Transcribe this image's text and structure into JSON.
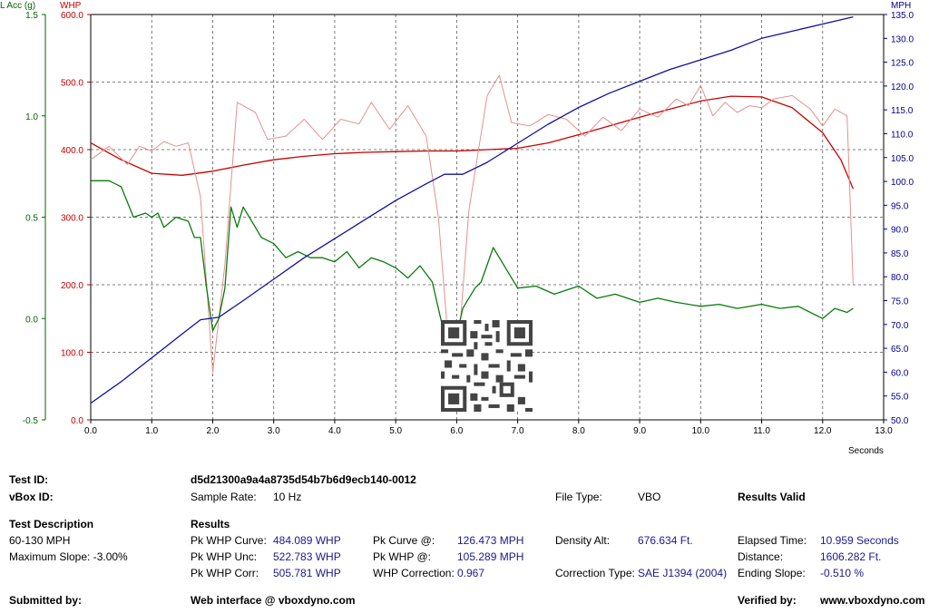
{
  "chart_data": {
    "type": "line",
    "xlabel": "Seconds",
    "xlim": [
      0,
      13
    ],
    "x_ticks": [
      "0.0",
      "1.0",
      "2.0",
      "3.0",
      "4.0",
      "5.0",
      "6.0",
      "7.0",
      "8.0",
      "9.0",
      "10.0",
      "11.0",
      "12.0",
      "13.0"
    ],
    "axes": {
      "whp": {
        "label": "WHP",
        "color": "#c00000",
        "range": [
          0,
          600
        ],
        "ticks": [
          "0.0",
          "100.0",
          "200.0",
          "300.0",
          "400.0",
          "500.0",
          "600.0"
        ]
      },
      "lacc": {
        "label": "L Acc (g)",
        "color": "#006400",
        "range": [
          -0.5,
          1.5
        ],
        "ticks": [
          "-0.5",
          "0.0",
          "0.5",
          "1.0",
          "1.5"
        ]
      },
      "mph": {
        "label": "MPH",
        "color": "#00008b",
        "range": [
          50,
          135
        ],
        "ticks": [
          "50.0",
          "55.0",
          "60.0",
          "65.0",
          "70.0",
          "75.0",
          "80.0",
          "85.0",
          "90.0",
          "95.0",
          "100.0",
          "105.0",
          "110.0",
          "115.0",
          "120.0",
          "125.0",
          "130.0",
          "135.0"
        ]
      }
    },
    "series": [
      {
        "axis": "whp",
        "color": "#cc0000",
        "points": [
          [
            0,
            410
          ],
          [
            0.5,
            385
          ],
          [
            1.0,
            365
          ],
          [
            1.5,
            362
          ],
          [
            2.0,
            368
          ],
          [
            2.5,
            377
          ],
          [
            3.0,
            385
          ],
          [
            3.5,
            390
          ],
          [
            4.0,
            394
          ],
          [
            4.5,
            396
          ],
          [
            5.0,
            397
          ],
          [
            5.5,
            398
          ],
          [
            6.0,
            398
          ],
          [
            6.5,
            400
          ],
          [
            7.0,
            402
          ],
          [
            7.5,
            410
          ],
          [
            8.0,
            422
          ],
          [
            8.5,
            435
          ],
          [
            9.0,
            448
          ],
          [
            9.5,
            460
          ],
          [
            10.0,
            472
          ],
          [
            10.5,
            479
          ],
          [
            11.0,
            478
          ],
          [
            11.5,
            462
          ],
          [
            12.0,
            425
          ],
          [
            12.3,
            385
          ],
          [
            12.5,
            342
          ]
        ]
      },
      {
        "axis": "whp",
        "color": "#e89090",
        "points": [
          [
            0,
            385
          ],
          [
            0.3,
            405
          ],
          [
            0.6,
            378
          ],
          [
            0.8,
            405
          ],
          [
            1.0,
            398
          ],
          [
            1.2,
            412
          ],
          [
            1.4,
            405
          ],
          [
            1.6,
            410
          ],
          [
            1.8,
            330
          ],
          [
            2.0,
            70
          ],
          [
            2.2,
            230
          ],
          [
            2.4,
            470
          ],
          [
            2.7,
            455
          ],
          [
            2.9,
            415
          ],
          [
            3.2,
            420
          ],
          [
            3.5,
            445
          ],
          [
            3.8,
            415
          ],
          [
            4.1,
            445
          ],
          [
            4.4,
            438
          ],
          [
            4.6,
            470
          ],
          [
            4.9,
            430
          ],
          [
            5.2,
            465
          ],
          [
            5.5,
            420
          ],
          [
            5.7,
            300
          ],
          [
            5.85,
            130
          ],
          [
            5.95,
            125
          ],
          [
            6.05,
            130
          ],
          [
            6.2,
            310
          ],
          [
            6.5,
            480
          ],
          [
            6.7,
            510
          ],
          [
            6.9,
            440
          ],
          [
            7.2,
            435
          ],
          [
            7.5,
            452
          ],
          [
            7.8,
            445
          ],
          [
            8.1,
            420
          ],
          [
            8.4,
            448
          ],
          [
            8.7,
            428
          ],
          [
            9.0,
            460
          ],
          [
            9.3,
            448
          ],
          [
            9.6,
            475
          ],
          [
            9.8,
            465
          ],
          [
            10.0,
            495
          ],
          [
            10.2,
            450
          ],
          [
            10.4,
            470
          ],
          [
            10.6,
            455
          ],
          [
            10.8,
            465
          ],
          [
            11.0,
            462
          ],
          [
            11.2,
            475
          ],
          [
            11.5,
            480
          ],
          [
            11.8,
            460
          ],
          [
            12.0,
            435
          ],
          [
            12.2,
            460
          ],
          [
            12.4,
            450
          ],
          [
            12.5,
            200
          ]
        ]
      },
      {
        "axis": "lacc",
        "color": "#0a7a0a",
        "points": [
          [
            0,
            0.68
          ],
          [
            0.3,
            0.68
          ],
          [
            0.5,
            0.65
          ],
          [
            0.7,
            0.5
          ],
          [
            0.9,
            0.52
          ],
          [
            1.0,
            0.5
          ],
          [
            1.1,
            0.52
          ],
          [
            1.2,
            0.45
          ],
          [
            1.4,
            0.5
          ],
          [
            1.6,
            0.48
          ],
          [
            1.7,
            0.4
          ],
          [
            1.8,
            0.4
          ],
          [
            1.9,
            0.15
          ],
          [
            2.0,
            -0.06
          ],
          [
            2.1,
            0.0
          ],
          [
            2.2,
            0.15
          ],
          [
            2.3,
            0.55
          ],
          [
            2.4,
            0.45
          ],
          [
            2.5,
            0.55
          ],
          [
            2.6,
            0.5
          ],
          [
            2.8,
            0.4
          ],
          [
            3.0,
            0.37
          ],
          [
            3.2,
            0.3
          ],
          [
            3.4,
            0.33
          ],
          [
            3.6,
            0.3
          ],
          [
            3.8,
            0.3
          ],
          [
            4.0,
            0.28
          ],
          [
            4.2,
            0.33
          ],
          [
            4.4,
            0.25
          ],
          [
            4.6,
            0.3
          ],
          [
            4.8,
            0.28
          ],
          [
            5.0,
            0.25
          ],
          [
            5.2,
            0.2
          ],
          [
            5.4,
            0.26
          ],
          [
            5.6,
            0.18
          ],
          [
            5.7,
            0.05
          ],
          [
            5.8,
            -0.08
          ],
          [
            5.9,
            -0.1
          ],
          [
            6.0,
            -0.08
          ],
          [
            6.1,
            0.05
          ],
          [
            6.2,
            0.1
          ],
          [
            6.3,
            0.15
          ],
          [
            6.4,
            0.18
          ],
          [
            6.6,
            0.35
          ],
          [
            6.8,
            0.25
          ],
          [
            7.0,
            0.15
          ],
          [
            7.3,
            0.16
          ],
          [
            7.6,
            0.12
          ],
          [
            8.0,
            0.16
          ],
          [
            8.3,
            0.1
          ],
          [
            8.6,
            0.12
          ],
          [
            9.0,
            0.08
          ],
          [
            9.3,
            0.1
          ],
          [
            9.6,
            0.08
          ],
          [
            10.0,
            0.06
          ],
          [
            10.3,
            0.07
          ],
          [
            10.6,
            0.05
          ],
          [
            11.0,
            0.07
          ],
          [
            11.3,
            0.05
          ],
          [
            11.6,
            0.06
          ],
          [
            12.0,
            0.0
          ],
          [
            12.2,
            0.05
          ],
          [
            12.4,
            0.03
          ],
          [
            12.5,
            0.05
          ]
        ]
      },
      {
        "axis": "mph",
        "color": "#1010a0",
        "points": [
          [
            0,
            53.5
          ],
          [
            0.5,
            58
          ],
          [
            1.0,
            63
          ],
          [
            1.5,
            68
          ],
          [
            1.8,
            71
          ],
          [
            2.1,
            71.5
          ],
          [
            2.5,
            75
          ],
          [
            3.0,
            79.5
          ],
          [
            3.5,
            84
          ],
          [
            4.0,
            88
          ],
          [
            4.5,
            92
          ],
          [
            5.0,
            96
          ],
          [
            5.5,
            99.5
          ],
          [
            5.8,
            101.5
          ],
          [
            6.1,
            101.5
          ],
          [
            6.5,
            104
          ],
          [
            7.0,
            108
          ],
          [
            7.5,
            112
          ],
          [
            8.0,
            115.5
          ],
          [
            8.5,
            118.5
          ],
          [
            9.0,
            121
          ],
          [
            9.5,
            123.5
          ],
          [
            10.0,
            125.5
          ],
          [
            10.5,
            127.5
          ],
          [
            11.0,
            130
          ],
          [
            11.5,
            131.5
          ],
          [
            12.0,
            133
          ],
          [
            12.5,
            134.5
          ]
        ]
      }
    ]
  },
  "info": {
    "test_id_label": "Test ID:",
    "test_id_value": "d5d21300a9a4a8735d54b7b6d9ecb140-0012",
    "vbox_id_label": "vBox ID:",
    "sample_rate_label": "Sample Rate:",
    "sample_rate_value": "10 Hz",
    "file_type_label": "File Type:",
    "file_type_value": "VBO",
    "results_valid": "Results Valid",
    "test_description_label": "Test Description",
    "test_description_value": "60-130 MPH",
    "max_slope": "Maximum Slope:  -3.00%",
    "results_label": "Results",
    "pk_whp_curve_label": "Pk WHP Curve:",
    "pk_whp_curve_value": "484.089 WHP",
    "pk_whp_unc_label": "Pk WHP Unc:",
    "pk_whp_unc_value": "522.783 WHP",
    "pk_whp_corr_label": "Pk WHP Corr:",
    "pk_whp_corr_value": "505.781 WHP",
    "pk_curve_at_label": "Pk Curve @:",
    "pk_curve_at_value": "126.473 MPH",
    "pk_whp_at_label": "Pk WHP @:",
    "pk_whp_at_value": "105.289 MPH",
    "whp_correction_label": "WHP Correction:",
    "whp_correction_value": "0.967",
    "density_alt_label": "Density Alt:",
    "density_alt_value": "676.634 Ft.",
    "correction_type_label": "Correction Type:",
    "correction_type_value": "SAE J1394 (2004)",
    "elapsed_time_label": "Elapsed Time:",
    "elapsed_time_value": "10.959 Seconds",
    "distance_label": "Distance:",
    "distance_value": "1606.282 Ft.",
    "ending_slope_label": "Ending Slope:",
    "ending_slope_value": "-0.510 %",
    "submitted_by_label": "Submitted by:",
    "web_interface": "Web interface @ vboxdyno.com",
    "verified_by_label": "Verified by:",
    "verified_site": "www.vboxdyno.com"
  }
}
